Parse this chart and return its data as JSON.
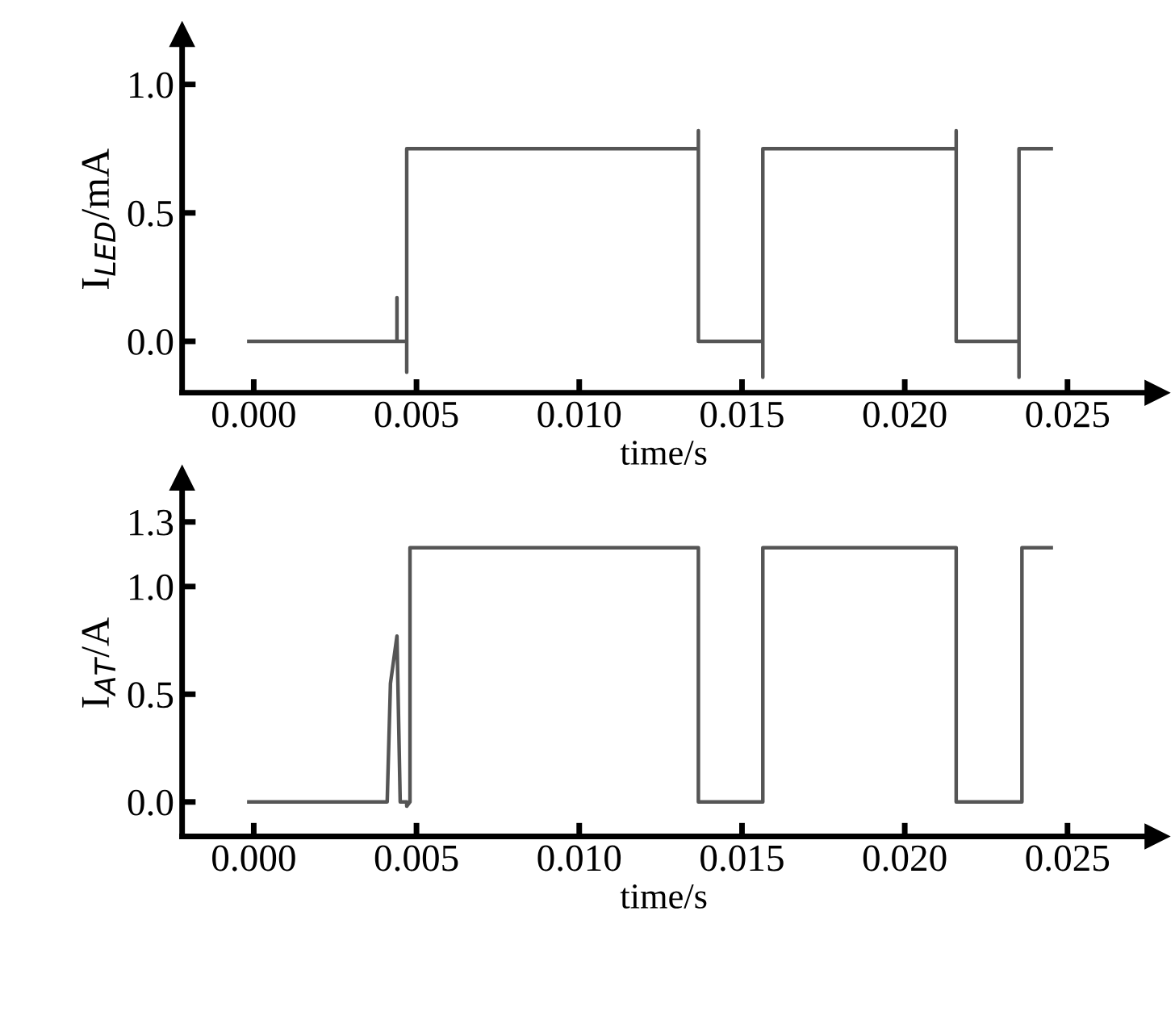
{
  "chart_data": [
    {
      "type": "line",
      "xlabel": "time/s",
      "ylabel": "I$_{LED}$/mA",
      "xlim": [
        -0.0022,
        0.0274
      ],
      "xticks": [
        {
          "value": 0.0,
          "label": "0.000"
        },
        {
          "value": 0.005,
          "label": "0.005"
        },
        {
          "value": 0.01,
          "label": "0.010"
        },
        {
          "value": 0.015,
          "label": "0.015"
        },
        {
          "value": 0.02,
          "label": "0.020"
        },
        {
          "value": 0.025,
          "label": "0.025"
        }
      ],
      "ylim": [
        -0.2,
        1.15
      ],
      "yticks": [
        {
          "value": 0.0,
          "label": "0.0"
        },
        {
          "value": 0.5,
          "label": "0.5"
        },
        {
          "value": 1.0,
          "label": "1.0"
        }
      ],
      "grid": false,
      "legend": false,
      "line_style": "solid",
      "series": [
        {
          "color": "#555555",
          "x": [
            -0.00015,
            0.0044,
            0.0044,
            0.0044,
            0.0047,
            0.0047,
            0.0047,
            0.01366,
            0.01366,
            0.01366,
            0.01564,
            0.01564,
            0.01564,
            0.02158,
            0.02158,
            0.02158,
            0.02351,
            0.02351,
            0.02351,
            0.0245
          ],
          "values": [
            0,
            0,
            0.17,
            0,
            0,
            -0.12,
            0.75,
            0.75,
            0.82,
            0,
            0,
            -0.14,
            0.75,
            0.75,
            0.82,
            0,
            0,
            -0.14,
            0.75,
            0.75
          ]
        }
      ]
    },
    {
      "type": "line",
      "xlabel": "time/s",
      "ylabel": "I$_{AT}$/A",
      "xlim": [
        -0.0022,
        0.0274
      ],
      "xticks": [
        {
          "value": 0.0,
          "label": "0.000"
        },
        {
          "value": 0.005,
          "label": "0.005"
        },
        {
          "value": 0.01,
          "label": "0.010"
        },
        {
          "value": 0.015,
          "label": "0.015"
        },
        {
          "value": 0.02,
          "label": "0.020"
        },
        {
          "value": 0.025,
          "label": "0.025"
        }
      ],
      "ylim": [
        -0.16,
        1.45
      ],
      "yticks": [
        {
          "value": 0.0,
          "label": "0.0"
        },
        {
          "value": 0.5,
          "label": "0.5"
        },
        {
          "value": 1.0,
          "label": "1.0"
        },
        {
          "value": 1.3,
          "label": "1.3"
        }
      ],
      "grid": false,
      "legend": false,
      "line_style": "solid",
      "series": [
        {
          "color": "#555555",
          "x": [
            -0.00015,
            0.0041,
            0.0042,
            0.0044,
            0.0045,
            0.0047,
            0.0047,
            0.0048,
            0.0048,
            0.01366,
            0.01366,
            0.01564,
            0.01564,
            0.02158,
            0.02158,
            0.0236,
            0.0236,
            0.0245
          ],
          "values": [
            0,
            0,
            0.55,
            0.77,
            0,
            0,
            -0.02,
            0,
            1.18,
            1.18,
            0,
            0,
            1.18,
            1.18,
            0,
            0,
            1.18,
            1.18
          ]
        }
      ]
    }
  ]
}
